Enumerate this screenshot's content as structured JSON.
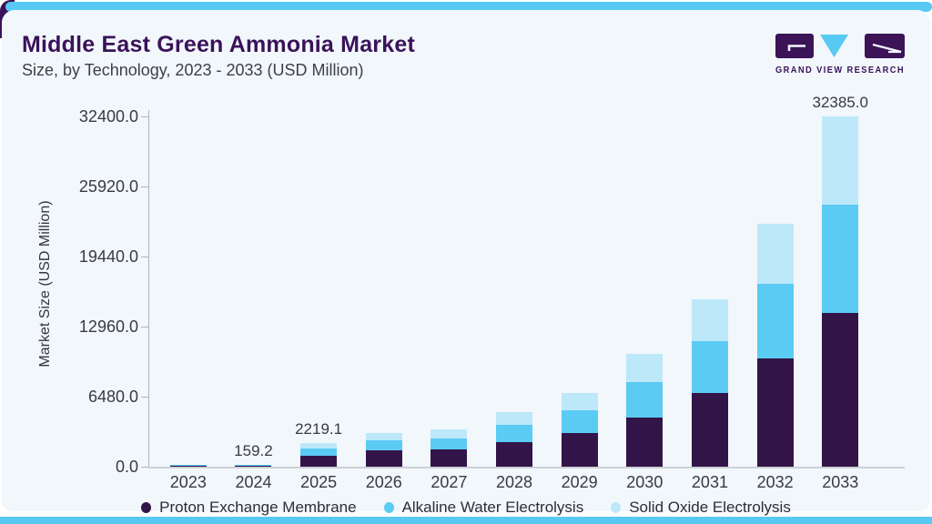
{
  "page": {
    "title": "Middle East Green Ammonia Market",
    "subtitle": "Size, by Technology, 2023 - 2033 (USD Million)"
  },
  "logo": {
    "text": "GRAND VIEW RESEARCH"
  },
  "colors": {
    "accent_blue": "#58c9f3",
    "brand_purple": "#3b1259",
    "card_background": "#f1f7fb",
    "axis_gray": "#aeb6bd",
    "pem_dark_purple": "#331448",
    "alkaline_blue": "#5bcbf4",
    "solid_oxide_light_blue": "#bde8fa"
  },
  "chart": {
    "y_axis_title": "Market Size (USD Million)",
    "y_ticks": [
      "0.0",
      "6480.0",
      "12960.0",
      "19440.0",
      "25920.0",
      "32400.0"
    ],
    "tick_values": [
      0,
      6480,
      12960,
      19440,
      25920,
      32400
    ],
    "axis_scale_max": 34000
  },
  "legend": {
    "items": [
      {
        "label": "Proton Exchange Membrane",
        "color": "#331448"
      },
      {
        "label": "Alkaline Water Electrolysis",
        "color": "#5bcbf4"
      },
      {
        "label": "Solid Oxide Electrolysis",
        "color": "#bde8fa"
      }
    ]
  },
  "chart_data": {
    "type": "bar",
    "stacked": true,
    "title": "Middle East Green Ammonia Market Size, by Technology, 2023 - 2033 (USD Million)",
    "xlabel": "",
    "ylabel": "Market Size (USD Million)",
    "ylim": [
      0,
      32400
    ],
    "grid": false,
    "legend_position": "bottom",
    "categories": [
      "2023",
      "2024",
      "2025",
      "2026",
      "2027",
      "2028",
      "2029",
      "2030",
      "2031",
      "2032",
      "2033"
    ],
    "series": [
      {
        "name": "Proton Exchange Membrane",
        "color": "#331448",
        "values": [
          10,
          70,
          1030,
          1510,
          1570,
          2280,
          3130,
          4585,
          6830,
          9990,
          14200
        ]
      },
      {
        "name": "Alkaline Water Electrolysis",
        "color": "#5bcbf4",
        "values": [
          8,
          50,
          680,
          905,
          1050,
          1565,
          2075,
          3210,
          4805,
          6940,
          10075
        ]
      },
      {
        "name": "Solid Oxide Electrolysis",
        "color": "#bde8fa",
        "values": [
          7,
          39.2,
          509.1,
          685,
          860,
          1230,
          1625,
          2620,
          3875,
          5550,
          8110
        ]
      }
    ],
    "totals": [
      25,
      159.2,
      2219.1,
      3100,
      3480,
      5075,
      6830,
      10415,
      15510,
      22480,
      32385
    ],
    "data_labels": [
      "",
      "159.2",
      "2219.1",
      "",
      "",
      "",
      "",
      "",
      "",
      "",
      "32385.0"
    ]
  }
}
